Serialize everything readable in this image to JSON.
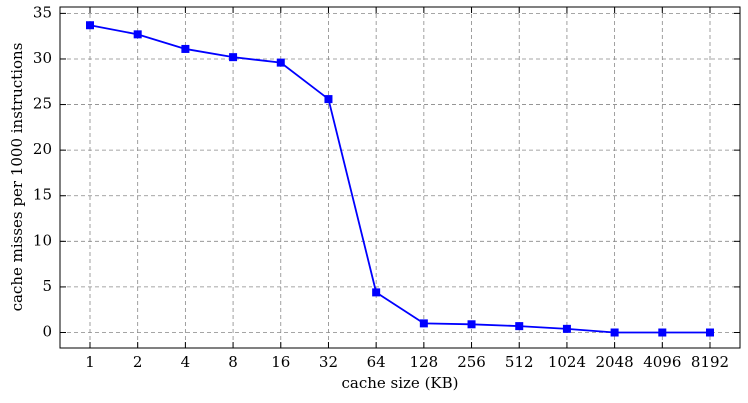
{
  "chart_data": {
    "type": "line",
    "x_label": "cache size (KB)",
    "y_label": "cache misses per 1000 instructions",
    "categories": [
      "1",
      "2",
      "4",
      "8",
      "16",
      "32",
      "64",
      "128",
      "256",
      "512",
      "1024",
      "2048",
      "4096",
      "8192"
    ],
    "series": [
      {
        "color": "#0000ff",
        "values": [
          33.7,
          32.7,
          31.1,
          30.2,
          29.6,
          25.6,
          4.4,
          1.0,
          0.9,
          0.7,
          0.4,
          0.0,
          0.0,
          0.0
        ]
      }
    ],
    "ylim": [
      -1.7,
      35.7
    ],
    "yticks": [
      0,
      5,
      10,
      15,
      20,
      25,
      30,
      35
    ],
    "grid": true,
    "marker": "square"
  }
}
